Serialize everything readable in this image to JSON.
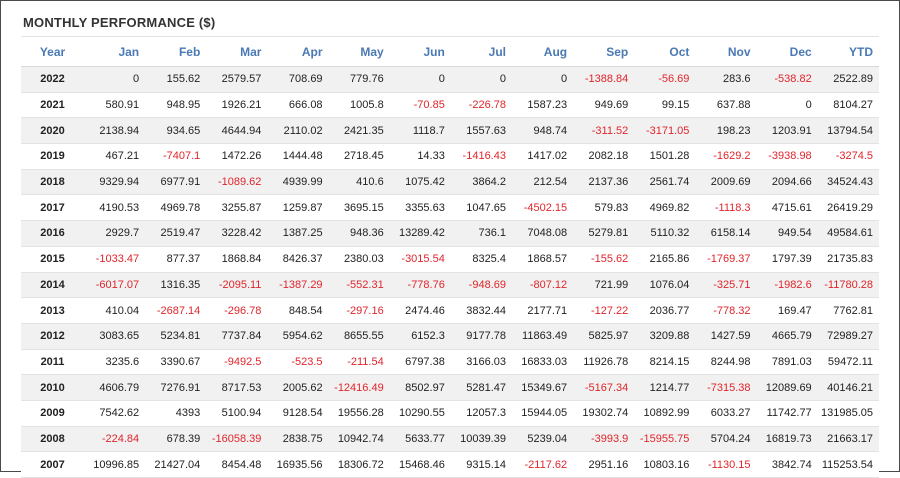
{
  "title": "MONTHLY PERFORMANCE ($)",
  "columns": [
    "Year",
    "Jan",
    "Feb",
    "Mar",
    "Apr",
    "May",
    "Jun",
    "Jul",
    "Aug",
    "Sep",
    "Oct",
    "Nov",
    "Dec",
    "YTD"
  ],
  "colors": {
    "header": "#4a79b4",
    "negative": "#e0252b",
    "stripe": "#f1f1f1"
  },
  "rows": [
    [
      "2022",
      "0",
      "155.62",
      "2579.57",
      "708.69",
      "779.76",
      "0",
      "0",
      "0",
      "-1388.84",
      "-56.69",
      "283.6",
      "-538.82",
      "2522.89"
    ],
    [
      "2021",
      "580.91",
      "948.95",
      "1926.21",
      "666.08",
      "1005.8",
      "-70.85",
      "-226.78",
      "1587.23",
      "949.69",
      "99.15",
      "637.88",
      "0",
      "8104.27"
    ],
    [
      "2020",
      "2138.94",
      "934.65",
      "4644.94",
      "2110.02",
      "2421.35",
      "1118.7",
      "1557.63",
      "948.74",
      "-311.52",
      "-3171.05",
      "198.23",
      "1203.91",
      "13794.54"
    ],
    [
      "2019",
      "467.21",
      "-7407.1",
      "1472.26",
      "1444.48",
      "2718.45",
      "14.33",
      "-1416.43",
      "1417.02",
      "2082.18",
      "1501.28",
      "-1629.2",
      "-3938.98",
      "-3274.5"
    ],
    [
      "2018",
      "9329.94",
      "6977.91",
      "-1089.62",
      "4939.99",
      "410.6",
      "1075.42",
      "3864.2",
      "212.54",
      "2137.36",
      "2561.74",
      "2009.69",
      "2094.66",
      "34524.43"
    ],
    [
      "2017",
      "4190.53",
      "4969.78",
      "3255.87",
      "1259.87",
      "3695.15",
      "3355.63",
      "1047.65",
      "-4502.15",
      "579.83",
      "4969.82",
      "-1118.3",
      "4715.61",
      "26419.29"
    ],
    [
      "2016",
      "2929.7",
      "2519.47",
      "3228.42",
      "1387.25",
      "948.36",
      "13289.42",
      "736.1",
      "7048.08",
      "5279.81",
      "5110.32",
      "6158.14",
      "949.54",
      "49584.61"
    ],
    [
      "2015",
      "-1033.47",
      "877.37",
      "1868.84",
      "8426.37",
      "2380.03",
      "-3015.54",
      "8325.4",
      "1868.57",
      "-155.62",
      "2165.86",
      "-1769.37",
      "1797.39",
      "21735.83"
    ],
    [
      "2014",
      "-6017.07",
      "1316.35",
      "-2095.11",
      "-1387.29",
      "-552.31",
      "-778.76",
      "-948.69",
      "-807.12",
      "721.99",
      "1076.04",
      "-325.71",
      "-1982.6",
      "-11780.28"
    ],
    [
      "2013",
      "410.04",
      "-2687.14",
      "-296.78",
      "848.54",
      "-297.16",
      "2474.46",
      "3832.44",
      "2177.71",
      "-127.22",
      "2036.77",
      "-778.32",
      "169.47",
      "7762.81"
    ],
    [
      "2012",
      "3083.65",
      "5234.81",
      "7737.84",
      "5954.62",
      "8655.55",
      "6152.3",
      "9177.78",
      "11863.49",
      "5825.97",
      "3209.88",
      "1427.59",
      "4665.79",
      "72989.27"
    ],
    [
      "2011",
      "3235.6",
      "3390.67",
      "-9492.5",
      "-523.5",
      "-211.54",
      "6797.38",
      "3166.03",
      "16833.03",
      "11926.78",
      "8214.15",
      "8244.98",
      "7891.03",
      "59472.11"
    ],
    [
      "2010",
      "4606.79",
      "7276.91",
      "8717.53",
      "2005.62",
      "-12416.49",
      "8502.97",
      "5281.47",
      "15349.67",
      "-5167.34",
      "1214.77",
      "-7315.38",
      "12089.69",
      "40146.21"
    ],
    [
      "2009",
      "7542.62",
      "4393",
      "5100.94",
      "9128.54",
      "19556.28",
      "10290.55",
      "12057.3",
      "15944.05",
      "19302.74",
      "10892.99",
      "6033.27",
      "11742.77",
      "131985.05"
    ],
    [
      "2008",
      "-224.84",
      "678.39",
      "-16058.39",
      "2838.75",
      "10942.74",
      "5633.77",
      "10039.39",
      "5239.04",
      "-3993.9",
      "-15955.75",
      "5704.24",
      "16819.73",
      "21663.17"
    ],
    [
      "2007",
      "10996.85",
      "21427.04",
      "8454.48",
      "16935.56",
      "18306.72",
      "15468.46",
      "9315.14",
      "-2117.62",
      "2951.16",
      "10803.16",
      "-1130.15",
      "3842.74",
      "115253.54"
    ]
  ]
}
